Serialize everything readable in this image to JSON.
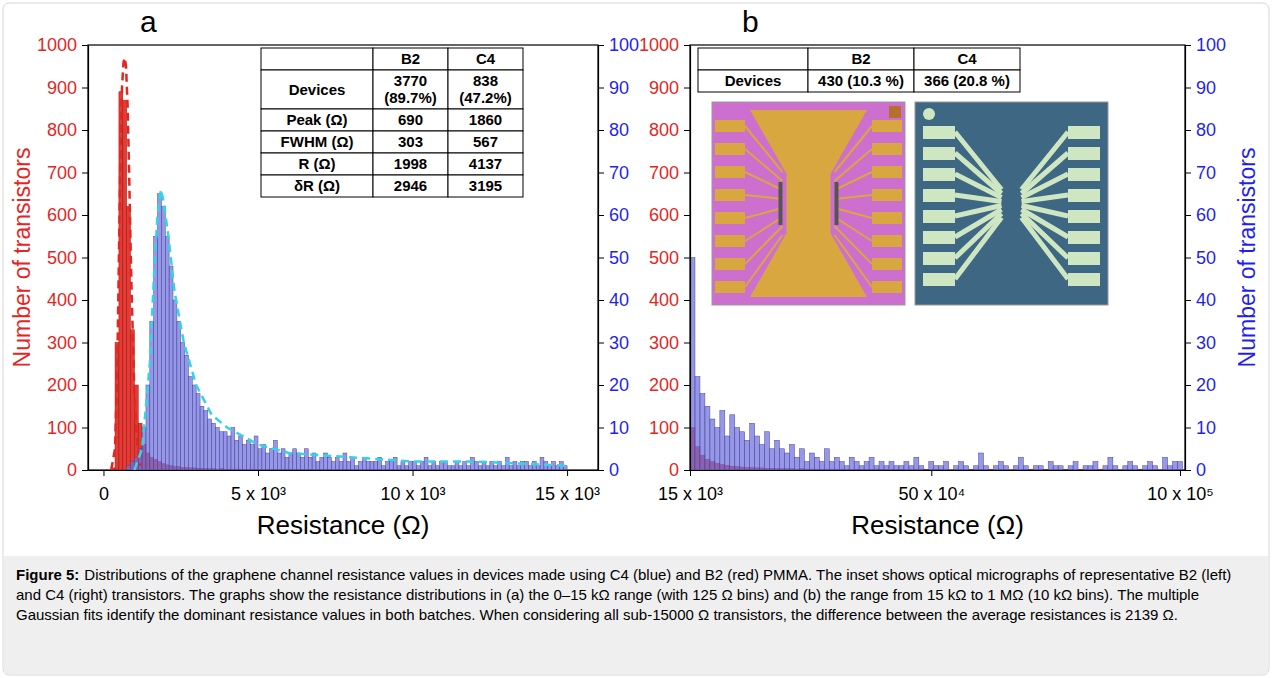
{
  "caption_label": "Figure 5:",
  "caption": "Distributions of the graphene channel resistance values in devices made using C4 (blue) and B2 (red) PMMA. The inset shows optical micrographs of representative B2 (left) and C4 (right) transistors. The graphs show the resistance distributions in (a) the 0–15 kΩ range (with 125 Ω bins) and (b) the range from 15 kΩ to 1 MΩ (10 kΩ bins). The multiple Gaussian fits identify the dominant resistance values in both batches. When considering all sub-15000 Ω transistors, the difference between the average resistances is 2139 Ω.",
  "chart_data": [
    {
      "type": "histogram",
      "title": "a",
      "xlabel": "Resistance (Ω)",
      "ylabel": "Number of transistors",
      "xlim": [
        -500,
        16000
      ],
      "xticks": [
        0,
        {
          "value": 5000,
          "label": "5 x 10³"
        },
        {
          "value": 10000,
          "label": "10 x 10³"
        },
        {
          "value": 15000,
          "label": "15 x 10³"
        }
      ],
      "ylim": [
        0,
        1000
      ],
      "yticks": [
        0,
        100,
        200,
        300,
        400,
        500,
        600,
        700,
        800,
        900,
        1000
      ],
      "y2lim": [
        0,
        100
      ],
      "y2ticks": [
        0,
        10,
        20,
        30,
        40,
        50,
        60,
        70,
        80,
        90,
        100
      ],
      "bins": [
        0,
        125,
        250,
        375,
        500,
        625,
        750,
        875,
        1000,
        1125,
        1250,
        1375,
        1500,
        1625,
        1750,
        1875,
        2000,
        2125,
        2250,
        2375,
        2500,
        2625,
        2750,
        2875,
        3000,
        3125,
        3250,
        3375,
        3500,
        3625,
        3750,
        3875,
        4000,
        4125,
        4250,
        4375,
        4500,
        4625,
        4750,
        4875,
        5000,
        5125,
        5250,
        5375,
        5500,
        5625,
        5750,
        5875,
        6000,
        6125,
        6250,
        6375,
        6500,
        6625,
        6750,
        6875,
        7000,
        7125,
        7250,
        7375,
        7500,
        7625,
        7750,
        7875,
        8000,
        8125,
        8250,
        8375,
        8500,
        8625,
        8750,
        8875,
        9000,
        9125,
        9250,
        9375,
        9500,
        9625,
        9750,
        9875,
        10000,
        10125,
        10250,
        10375,
        10500,
        10625,
        10750,
        10875,
        11000,
        11125,
        11250,
        11375,
        11500,
        11625,
        11750,
        11875,
        12000,
        12125,
        12250,
        12375,
        12500,
        12625,
        12750,
        12875,
        13000,
        13125,
        13250,
        13375,
        13500,
        13625,
        13750,
        13875,
        14000,
        14125,
        14250,
        14375,
        14500,
        14625,
        14750,
        14875,
        15000
      ],
      "series": [
        {
          "type": "bar",
          "color": "#e3261f",
          "values": [
            0,
            0,
            5,
            300,
            890,
            870,
            620,
            330,
            200,
            110,
            60,
            40,
            30,
            25,
            20,
            15,
            12,
            10,
            8,
            8,
            6,
            6,
            5,
            5,
            4,
            4,
            3,
            3,
            3,
            2,
            3,
            2,
            2,
            2,
            1,
            2,
            1,
            1,
            2,
            1,
            1,
            1,
            2,
            1,
            1,
            0,
            1,
            1,
            1,
            0,
            1,
            1,
            0,
            1,
            0,
            1,
            1,
            0,
            1,
            0,
            1,
            0,
            1,
            1,
            0,
            1,
            0,
            0,
            1,
            0,
            0,
            1,
            0,
            1,
            0,
            0,
            1,
            0,
            1,
            0,
            1,
            0,
            0,
            1,
            0,
            1,
            0,
            0,
            1,
            0,
            0,
            1,
            0,
            0,
            1,
            0,
            1,
            0,
            0,
            1,
            0,
            0,
            1,
            0,
            1,
            0,
            0,
            1,
            0,
            0,
            1,
            0,
            0,
            1,
            0,
            0,
            1,
            0,
            0,
            1
          ]
        },
        {
          "type": "bar",
          "color": "#6f6fe0",
          "axis": "y2",
          "values": [
            0,
            0,
            0,
            0,
            0,
            0,
            1,
            2,
            3,
            5,
            10,
            20,
            35,
            55,
            65,
            62,
            55,
            48,
            40,
            35,
            30,
            27,
            22,
            20,
            18,
            15,
            14,
            12,
            11,
            10,
            9,
            9,
            8,
            10,
            7,
            8,
            6,
            7,
            6,
            8,
            5,
            6,
            4,
            5,
            7,
            4,
            5,
            3,
            4,
            5,
            4,
            3,
            5,
            3,
            4,
            2,
            3,
            4,
            3,
            2,
            3,
            2,
            4,
            2,
            3,
            1,
            2,
            3,
            2,
            2,
            2,
            3,
            1,
            2,
            2,
            3,
            1,
            2,
            1,
            2,
            2,
            1,
            2,
            3,
            1,
            2,
            1,
            2,
            2,
            1,
            1,
            2,
            1,
            2,
            1,
            3,
            2,
            1,
            2,
            1,
            2,
            1,
            2,
            1,
            3,
            1,
            2,
            1,
            2,
            2,
            1,
            2,
            1,
            3,
            2,
            1,
            2,
            1,
            2,
            1
          ]
        },
        {
          "type": "line",
          "color": "#e3261f",
          "line_style": "dashed",
          "x": [
            250,
            375,
            450,
            500,
            550,
            600,
            650,
            690,
            730,
            780,
            830,
            900,
            1000,
            1100,
            1200
          ],
          "values": [
            0,
            50,
            250,
            500,
            750,
            900,
            960,
            970,
            950,
            860,
            700,
            450,
            180,
            50,
            10
          ]
        },
        {
          "type": "line",
          "color": "#36d3e6",
          "line_style": "dashed",
          "axis": "y2",
          "x": [
            1000,
            1250,
            1500,
            1650,
            1750,
            1860,
            1950,
            2100,
            2300,
            2600,
            3000,
            3500,
            4000,
            5000,
            6000,
            8000,
            10000,
            12000,
            15000
          ],
          "values": [
            0,
            5,
            25,
            48,
            60,
            66,
            63,
            55,
            42,
            30,
            20,
            13,
            10,
            6,
            4,
            3,
            2,
            2,
            1
          ]
        }
      ],
      "table": {
        "header": [
          null,
          "B2",
          "C4"
        ],
        "rows": [
          [
            "Devices",
            [
              3770,
              "(89.7%)"
            ],
            [
              838,
              "(47.2%)"
            ]
          ],
          [
            "Peak (Ω)",
            690,
            1860
          ],
          [
            "FWHM (Ω)",
            303,
            567
          ],
          [
            "R (Ω)",
            1998,
            4137
          ],
          [
            "δR (Ω)",
            2946,
            3195
          ]
        ]
      }
    },
    {
      "type": "histogram",
      "title": "b",
      "xlabel": "Resistance (Ω)",
      "y2label": "Number of transistors",
      "xlim": [
        15000,
        1010000
      ],
      "xticks": [
        {
          "value": 15000,
          "label": "15 x 10³"
        },
        {
          "value": 500000,
          "label": "50 x 10⁴"
        },
        {
          "value": 1000000,
          "label": "10 x 10⁵"
        }
      ],
      "ylim": [
        0,
        1000
      ],
      "yticks": [
        0,
        100,
        200,
        300,
        400,
        500,
        600,
        700,
        800,
        900,
        1000
      ],
      "y2lim": [
        0,
        100
      ],
      "y2ticks": [
        0,
        10,
        20,
        30,
        40,
        50,
        60,
        70,
        80,
        90,
        100
      ],
      "bins": [
        15000,
        25000,
        35000,
        45000,
        55000,
        65000,
        75000,
        85000,
        95000,
        105000,
        115000,
        125000,
        135000,
        145000,
        155000,
        165000,
        175000,
        185000,
        195000,
        205000,
        215000,
        225000,
        235000,
        245000,
        255000,
        265000,
        275000,
        285000,
        295000,
        305000,
        315000,
        325000,
        335000,
        345000,
        355000,
        365000,
        375000,
        385000,
        395000,
        405000,
        415000,
        425000,
        435000,
        445000,
        455000,
        465000,
        475000,
        485000,
        495000,
        505000,
        515000,
        525000,
        535000,
        545000,
        555000,
        565000,
        575000,
        585000,
        595000,
        605000,
        615000,
        625000,
        635000,
        645000,
        655000,
        665000,
        675000,
        685000,
        695000,
        705000,
        715000,
        725000,
        735000,
        745000,
        755000,
        765000,
        775000,
        785000,
        795000,
        805000,
        815000,
        825000,
        835000,
        845000,
        855000,
        865000,
        875000,
        885000,
        895000,
        905000,
        915000,
        925000,
        935000,
        945000,
        955000,
        965000,
        975000,
        985000,
        995000,
        1005000
      ],
      "series": [
        {
          "type": "bar",
          "color": "#e3261f",
          "values": [
            100,
            55,
            35,
            25,
            20,
            16,
            13,
            11,
            9,
            8,
            7,
            6,
            6,
            5,
            5,
            4,
            4,
            3,
            3,
            3,
            3,
            2,
            3,
            2,
            2,
            2,
            1,
            2,
            2,
            1,
            2,
            1,
            1,
            2,
            1,
            1,
            1,
            2,
            1,
            1,
            1,
            1,
            1,
            0,
            1,
            1,
            2,
            1,
            0,
            1,
            1,
            1,
            0,
            1,
            1,
            0,
            1,
            1,
            1,
            0,
            1,
            0,
            1,
            1,
            0,
            1,
            0,
            1,
            1,
            0,
            1,
            1,
            0,
            1,
            0,
            1,
            1,
            0,
            1,
            1,
            0,
            1,
            1,
            0,
            1,
            1,
            0,
            1,
            1,
            0,
            1,
            0,
            1,
            1,
            0,
            1,
            0,
            1,
            1
          ]
        },
        {
          "type": "bar",
          "color": "#6f6fe0",
          "axis": "y2",
          "values": [
            50,
            22,
            18,
            15,
            12,
            10,
            14,
            8,
            13,
            10,
            9,
            7,
            11,
            8,
            6,
            9,
            5,
            7,
            5,
            4,
            6,
            3,
            5,
            2,
            4,
            3,
            2,
            5,
            2,
            3,
            2,
            1,
            3,
            2,
            1,
            2,
            3,
            1,
            2,
            1,
            2,
            1,
            1,
            2,
            1,
            3,
            1,
            0,
            2,
            1,
            1,
            2,
            0,
            1,
            2,
            1,
            0,
            1,
            4,
            1,
            0,
            1,
            2,
            1,
            0,
            1,
            3,
            1,
            0,
            1,
            1,
            0,
            2,
            1,
            1,
            0,
            1,
            2,
            0,
            1,
            1,
            2,
            0,
            1,
            3,
            1,
            0,
            1,
            2,
            1,
            0,
            1,
            2,
            1,
            0,
            3,
            1,
            2,
            2
          ]
        }
      ],
      "table": {
        "header": [
          null,
          "B2",
          "C4"
        ],
        "rows": [
          [
            "Devices",
            "430 (10.3 %)",
            "366 (20.8 %)"
          ]
        ]
      }
    }
  ]
}
